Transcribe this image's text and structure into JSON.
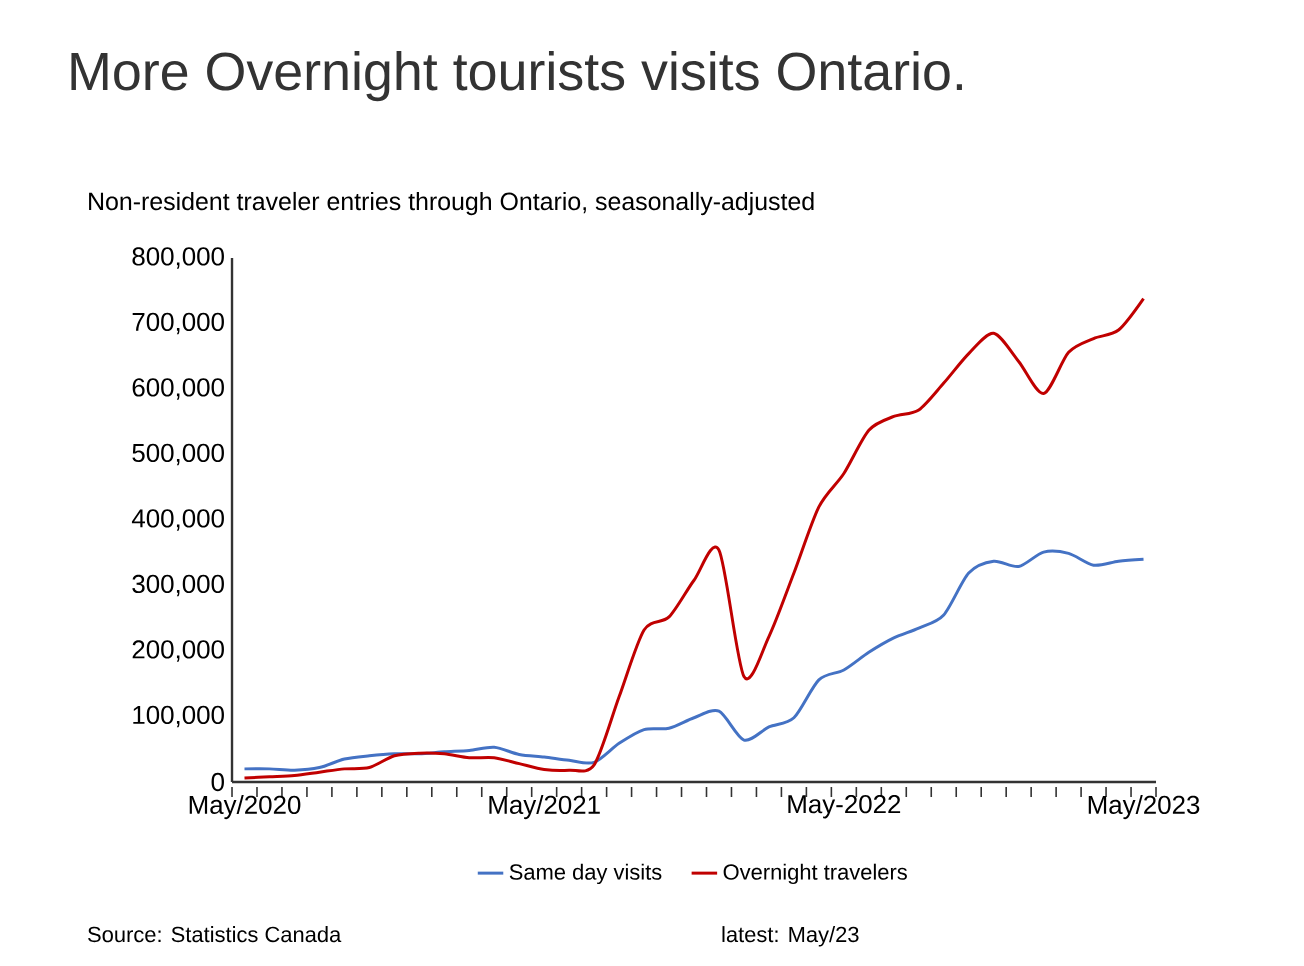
{
  "chart_data": {
    "type": "line",
    "title": "More Overnight tourists visits Ontario.",
    "subtitle": "Non-resident traveler entries through Ontario, seasonally-adjusted",
    "categories": [
      "May/2020",
      null,
      null,
      null,
      null,
      null,
      null,
      null,
      null,
      null,
      null,
      null,
      "May/2021",
      null,
      null,
      null,
      null,
      null,
      null,
      null,
      null,
      null,
      null,
      null,
      "May-2022",
      null,
      null,
      null,
      null,
      null,
      null,
      null,
      null,
      null,
      null,
      null,
      "May/2023"
    ],
    "series": [
      {
        "name": "Same day visits",
        "color": "#4472c4",
        "values": [
          20000,
          20000,
          18000,
          22000,
          35000,
          40000,
          43000,
          43000,
          46000,
          48000,
          53000,
          42000,
          38000,
          33000,
          30000,
          59000,
          80000,
          82000,
          98000,
          108000,
          64000,
          84000,
          98000,
          156000,
          171000,
          198000,
          220000,
          235000,
          255000,
          319000,
          337000,
          329000,
          351000,
          349000,
          331000,
          337000,
          340000
        ]
      },
      {
        "name": "Overnight travelers",
        "color": "#c00000",
        "values": [
          6000,
          8000,
          10000,
          15000,
          20000,
          22000,
          40000,
          44000,
          43000,
          37000,
          37000,
          28000,
          19000,
          18000,
          26000,
          130000,
          232000,
          252000,
          308000,
          354000,
          161000,
          222000,
          319000,
          420000,
          471000,
          537000,
          558000,
          568000,
          609000,
          654000,
          685000,
          642000,
          593000,
          656000,
          677000,
          690000,
          738000
        ]
      }
    ],
    "ylim": [
      0,
      800000
    ],
    "yticks": [
      {
        "value": 0,
        "label": "0"
      },
      {
        "value": 100000,
        "label": "100,000"
      },
      {
        "value": 200000,
        "label": "200,000"
      },
      {
        "value": 300000,
        "label": "300,000"
      },
      {
        "value": 400000,
        "label": "400,000"
      },
      {
        "value": 500000,
        "label": "500,000"
      },
      {
        "value": 600000,
        "label": "600,000"
      },
      {
        "value": 700000,
        "label": "700,000"
      },
      {
        "value": 800000,
        "label": "800,000"
      }
    ],
    "legend": "bottom",
    "annotations": [
      "Source: Statistics Canada",
      "latest: May/23"
    ]
  }
}
